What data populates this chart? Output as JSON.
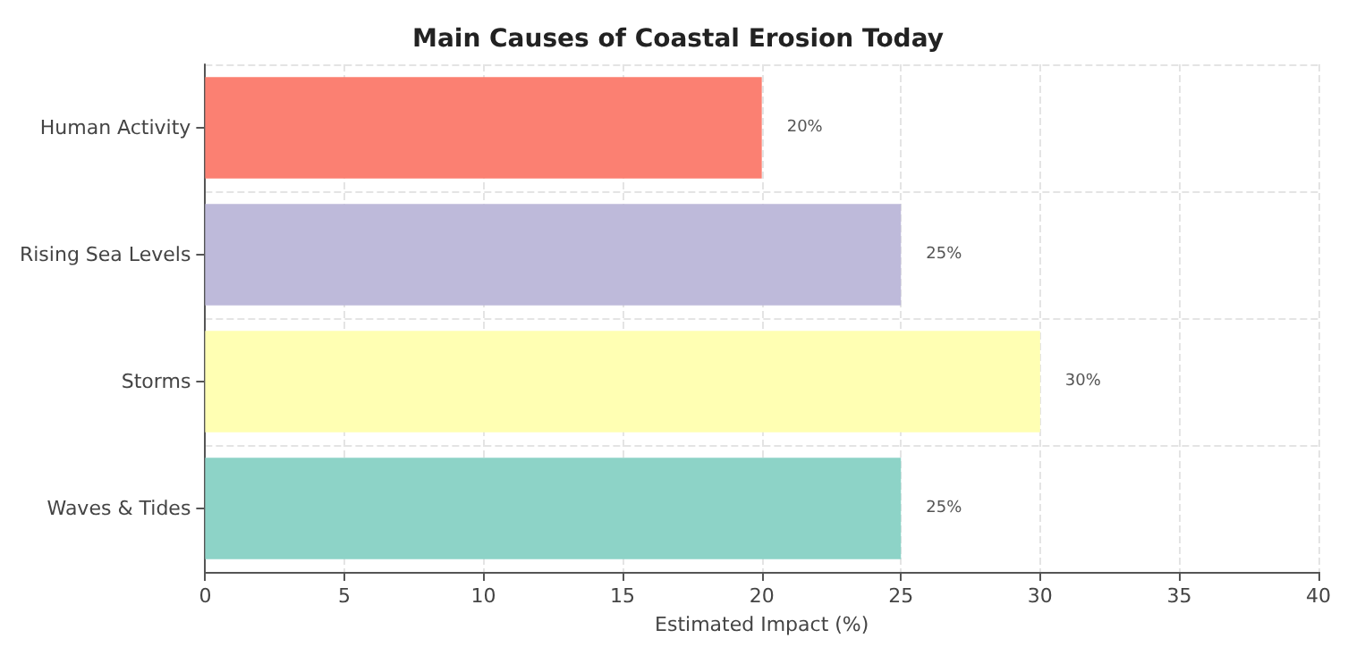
{
  "chart_data": {
    "type": "bar",
    "orientation": "horizontal",
    "title": "Main Causes of Coastal Erosion Today",
    "xlabel": "Estimated Impact (%)",
    "categories": [
      "Human Activity",
      "Rising Sea Levels",
      "Storms",
      "Waves & Tides"
    ],
    "values": [
      20,
      25,
      30,
      25
    ],
    "colors": [
      "#fb8072",
      "#bebada",
      "#ffffb3",
      "#8dd3c7"
    ],
    "value_labels": [
      "20%",
      "25%",
      "30%",
      "25%"
    ],
    "xlim": [
      0,
      40
    ],
    "xticks": [
      0,
      5,
      10,
      15,
      20,
      25,
      30,
      35,
      40
    ],
    "grid": true
  }
}
